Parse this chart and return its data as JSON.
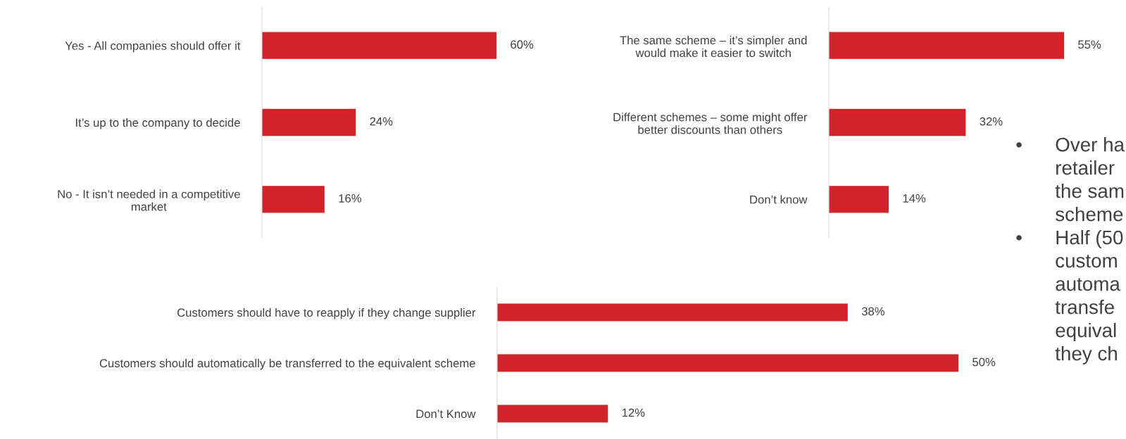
{
  "chart_data": [
    {
      "type": "bar",
      "orientation": "horizontal",
      "categories": [
        "Yes - All companies should offer it",
        "It’s up to the company to decide",
        "No - It isn’t needed in a competitive\nmarket"
      ],
      "values": [
        60,
        24,
        16
      ],
      "color": "#d2232a",
      "data_labels": true,
      "value_labels": [
        "60%",
        "24%",
        "16%"
      ]
    },
    {
      "type": "bar",
      "orientation": "horizontal",
      "categories": [
        "The same scheme – it’s simpler and\nwould make it easier to switch",
        "Different schemes – some might offer\nbetter discounts than others",
        "Don’t know"
      ],
      "values": [
        55,
        32,
        14
      ],
      "color": "#d2232a",
      "data_labels": true,
      "value_labels": [
        "55%",
        "32%",
        "14%"
      ]
    },
    {
      "type": "bar",
      "orientation": "horizontal",
      "categories": [
        "Customers should have to reapply if they change supplier",
        "Customers should automatically be transferred to the equivalent scheme",
        "Don’t Know"
      ],
      "values": [
        38,
        50,
        12
      ],
      "color": "#d2232a",
      "data_labels": true,
      "value_labels": [
        "38%",
        "50%",
        "12%"
      ]
    },
    {
      "type": "other",
      "annotations": [
        [
          "•",
          "Over ha",
          "retailer",
          "the sam",
          "scheme"
        ],
        [
          "•",
          "Half (50",
          "custom",
          "automa",
          "transfe",
          "equival",
          "they ch"
        ]
      ]
    }
  ]
}
